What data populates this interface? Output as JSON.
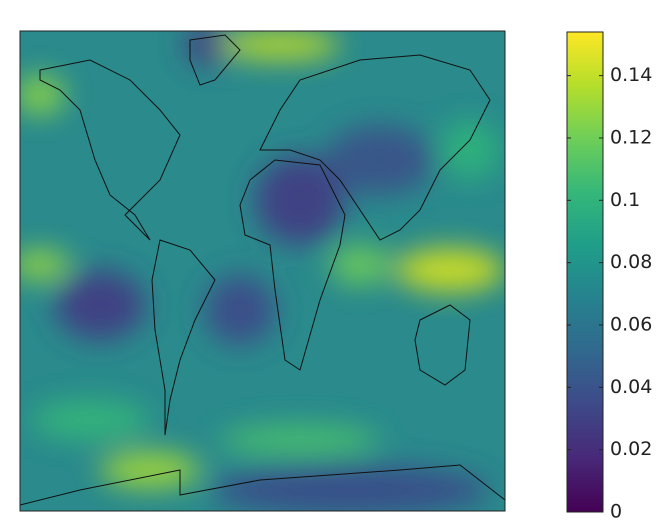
{
  "colorbar": {
    "ylim": [
      0,
      0.154
    ],
    "yticks": [
      0,
      0.02,
      0.04,
      0.06,
      0.08,
      0.1,
      0.12,
      0.14
    ],
    "colormap": [
      "#440154",
      "#482878",
      "#3e4989",
      "#31688e",
      "#26828e",
      "#1f9e89",
      "#35b779",
      "#6ece58",
      "#b5de2b",
      "#fde725"
    ]
  }
}
